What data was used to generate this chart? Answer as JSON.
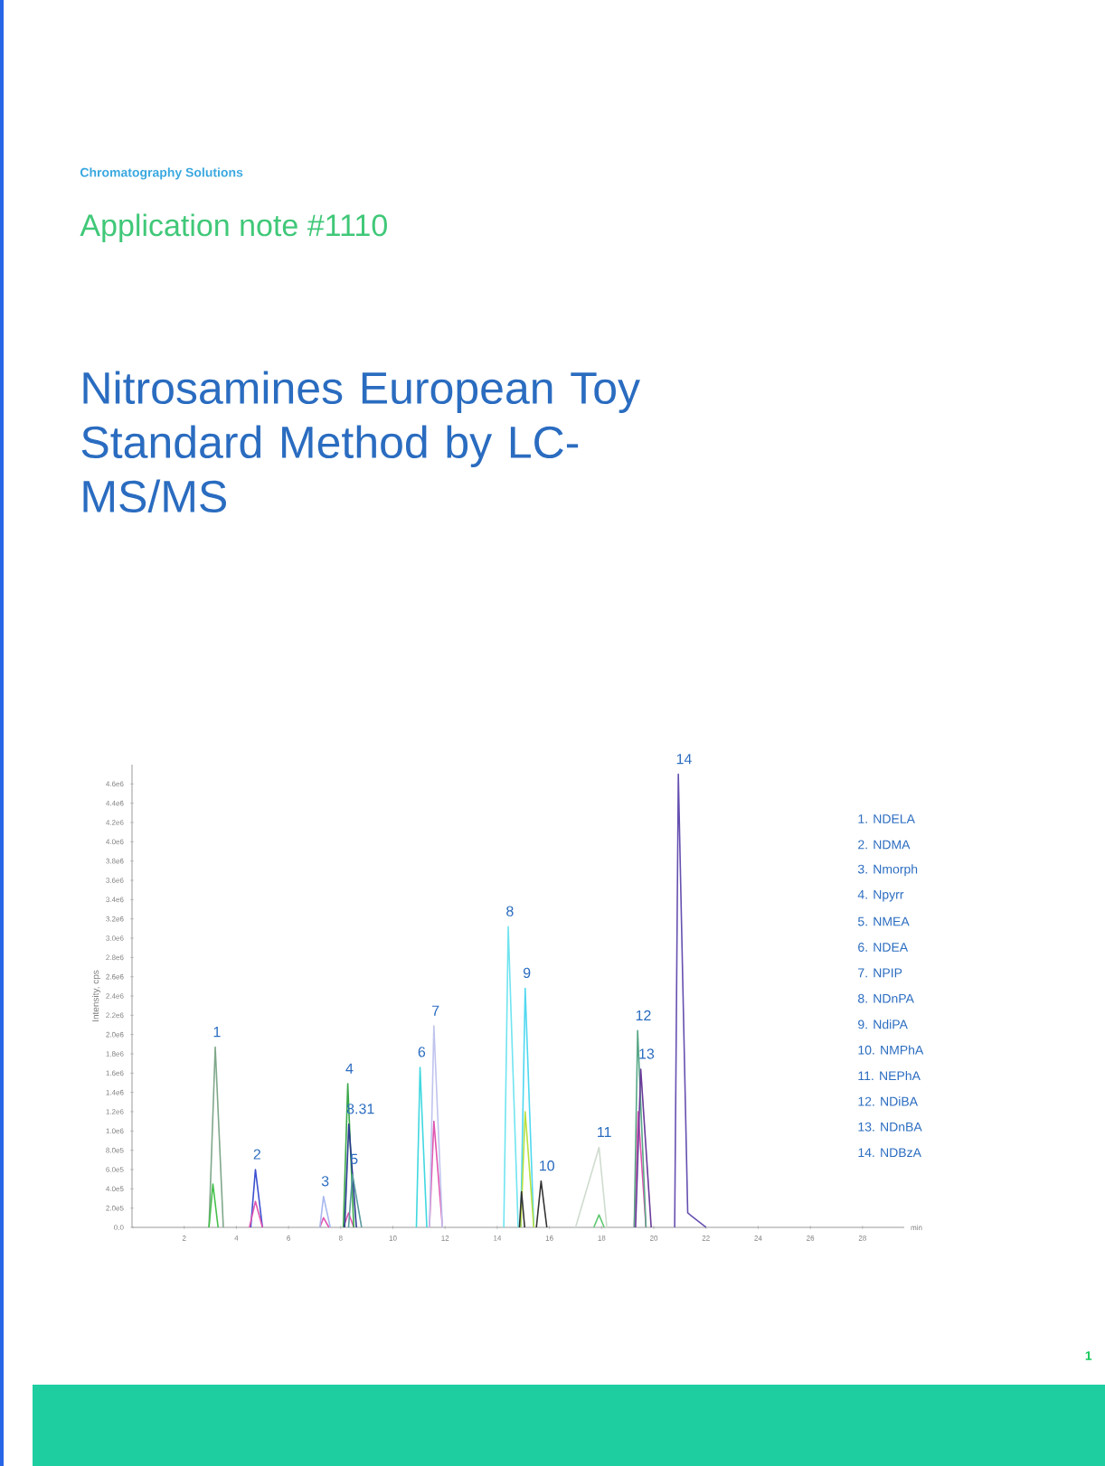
{
  "chart_data": {
    "type": "line",
    "title": "Nitrosamines European Toy Standard Method by LC-MS/MS",
    "subtitle": "Application note #1110",
    "xlabel": "min",
    "ylabel": "Intensity, cps",
    "xlim": [
      0,
      29.6
    ],
    "ylim": [
      0,
      4800000
    ],
    "xticks": [
      2,
      4,
      6,
      8,
      10,
      12,
      14,
      16,
      18,
      20,
      22,
      24,
      26,
      28
    ],
    "yticks": [
      {
        "value": 0,
        "label": "0.0"
      },
      {
        "value": 200000,
        "label": "2.0e5"
      },
      {
        "value": 400000,
        "label": "4.0e5"
      },
      {
        "value": 600000,
        "label": "6.0e5"
      },
      {
        "value": 800000,
        "label": "8.0e5"
      },
      {
        "value": 1000000,
        "label": "1.0e6"
      },
      {
        "value": 1200000,
        "label": "1.2e6"
      },
      {
        "value": 1400000,
        "label": "1.4e6"
      },
      {
        "value": 1600000,
        "label": "1.6e6"
      },
      {
        "value": 1800000,
        "label": "1.8e6"
      },
      {
        "value": 2000000,
        "label": "2.0e6"
      },
      {
        "value": 2200000,
        "label": "2.2e6"
      },
      {
        "value": 2400000,
        "label": "2.4e6"
      },
      {
        "value": 2600000,
        "label": "2.6e6"
      },
      {
        "value": 2800000,
        "label": "2.8e6"
      },
      {
        "value": 3000000,
        "label": "3.0e6"
      },
      {
        "value": 3200000,
        "label": "3.2e6"
      },
      {
        "value": 3400000,
        "label": "3.4e6"
      },
      {
        "value": 3600000,
        "label": "3.6e6"
      },
      {
        "value": 3800000,
        "label": "3.8e6"
      },
      {
        "value": 4000000,
        "label": "4.0e6"
      },
      {
        "value": 4200000,
        "label": "4.2e6"
      },
      {
        "value": 4400000,
        "label": "4.4e6"
      },
      {
        "value": 4600000,
        "label": "4.6e6"
      }
    ],
    "series": [
      {
        "color": "#7fa88a",
        "x": [
          2.95,
          3.19,
          3.5
        ],
        "values": [
          0,
          1870000,
          0
        ]
      },
      {
        "color": "#44c04a",
        "x": [
          2.95,
          3.1,
          3.3
        ],
        "values": [
          0,
          450000,
          0
        ]
      },
      {
        "color": "#3c50d0",
        "x": [
          4.55,
          4.73,
          5.0
        ],
        "values": [
          0,
          600000,
          0
        ]
      },
      {
        "color": "#e055b0",
        "x": [
          4.5,
          4.73,
          5.0,
          5.1,
          7.2,
          7.34,
          7.55,
          7.6,
          8.1,
          8.3,
          8.5,
          8.6,
          11.4,
          11.57,
          11.9,
          12.0,
          19.25,
          19.4,
          19.7
        ],
        "values": [
          0,
          270000,
          0,
          null,
          0,
          100000,
          0,
          null,
          0,
          150000,
          0,
          null,
          0,
          1100000,
          0,
          null,
          0,
          1200000,
          0
        ]
      },
      {
        "color": "#a8b8f0",
        "x": [
          7.2,
          7.34,
          7.6
        ],
        "values": [
          0,
          320000,
          0
        ]
      },
      {
        "color": "#3aa84a",
        "x": [
          8.1,
          8.27,
          8.5
        ],
        "values": [
          0,
          1490000,
          0
        ]
      },
      {
        "color": "#2a3a90",
        "x": [
          8.15,
          8.31,
          8.6
        ],
        "values": [
          0,
          1070000,
          0
        ]
      },
      {
        "color": "#5a9aa0",
        "x": [
          8.3,
          8.45,
          8.8
        ],
        "values": [
          0,
          550000,
          0
        ]
      },
      {
        "color": "#40d8e0",
        "x": [
          10.9,
          11.04,
          11.3
        ],
        "values": [
          0,
          1660000,
          0
        ]
      },
      {
        "color": "#c0c4ee",
        "x": [
          11.4,
          11.57,
          11.9
        ],
        "values": [
          0,
          2090000,
          0
        ]
      },
      {
        "color": "#70e4f0",
        "x": [
          14.25,
          14.42,
          14.8
        ],
        "values": [
          0,
          3120000,
          0
        ]
      },
      {
        "color": "#50d8f0",
        "x": [
          14.9,
          15.07,
          15.4
        ],
        "values": [
          0,
          2480000,
          0
        ]
      },
      {
        "color": "#b8e040",
        "x": [
          14.9,
          15.07,
          15.4
        ],
        "values": [
          0,
          1200000,
          0
        ]
      },
      {
        "color": "#333333",
        "x": [
          14.85,
          14.93,
          15.05,
          15.2,
          15.5,
          15.68,
          15.9
        ],
        "values": [
          0,
          370000,
          0,
          null,
          0,
          480000,
          0
        ]
      },
      {
        "color": "#d0dcd0",
        "x": [
          17.0,
          17.9,
          18.2
        ],
        "values": [
          0,
          830000,
          0
        ]
      },
      {
        "color": "#60c870",
        "x": [
          17.7,
          17.9,
          18.1
        ],
        "values": [
          0,
          130000,
          0
        ]
      },
      {
        "color": "#58a888",
        "x": [
          19.25,
          19.38,
          19.7
        ],
        "values": [
          0,
          2040000,
          0
        ]
      },
      {
        "color": "#6a3a9a",
        "x": [
          19.3,
          19.5,
          19.9
        ],
        "values": [
          0,
          1640000,
          0
        ]
      },
      {
        "color": "#6650b0",
        "x": [
          20.8,
          20.94,
          21.3,
          22.0
        ],
        "values": [
          0,
          4700000,
          150000,
          0
        ]
      }
    ],
    "annotations": [
      "Chromatography Solutions",
      "1. NDELA",
      "2. NDMA",
      "3. Nmorph",
      "4. Npyrr",
      "5. NMEA",
      "6. NDEA",
      "7. NPIP",
      "8. NDnPA",
      "9. NdiPA",
      "10. NMPhA",
      "11. NEPhA",
      "12. NDiBA",
      "13. NDnBA",
      "14. NDBzA",
      "1",
      {
        "text": "1",
        "x": 3.19,
        "y": 1870000
      },
      {
        "text": "2",
        "x": 4.73,
        "y": 600000
      },
      {
        "text": "3",
        "x": 7.34,
        "y": 320000
      },
      {
        "text": "4",
        "x": 8.27,
        "y": 1490000
      },
      {
        "text": "8.31",
        "x": 8.31,
        "y": 1070000
      },
      {
        "text": "5",
        "x": 8.45,
        "y": 550000
      },
      {
        "text": "6",
        "x": 11.04,
        "y": 1660000
      },
      {
        "text": "7",
        "x": 11.57,
        "y": 2090000
      },
      {
        "text": "8",
        "x": 14.42,
        "y": 3120000
      },
      {
        "text": "9",
        "x": 15.07,
        "y": 2480000
      },
      {
        "text": "10",
        "x": 15.68,
        "y": 480000
      },
      {
        "text": "11",
        "x": 17.9,
        "y": 830000
      },
      {
        "text": "12",
        "x": 19.38,
        "y": 2040000
      },
      {
        "text": "13",
        "x": 19.5,
        "y": 1640000
      },
      {
        "text": "14",
        "x": 20.94,
        "y": 4700000
      }
    ]
  }
}
